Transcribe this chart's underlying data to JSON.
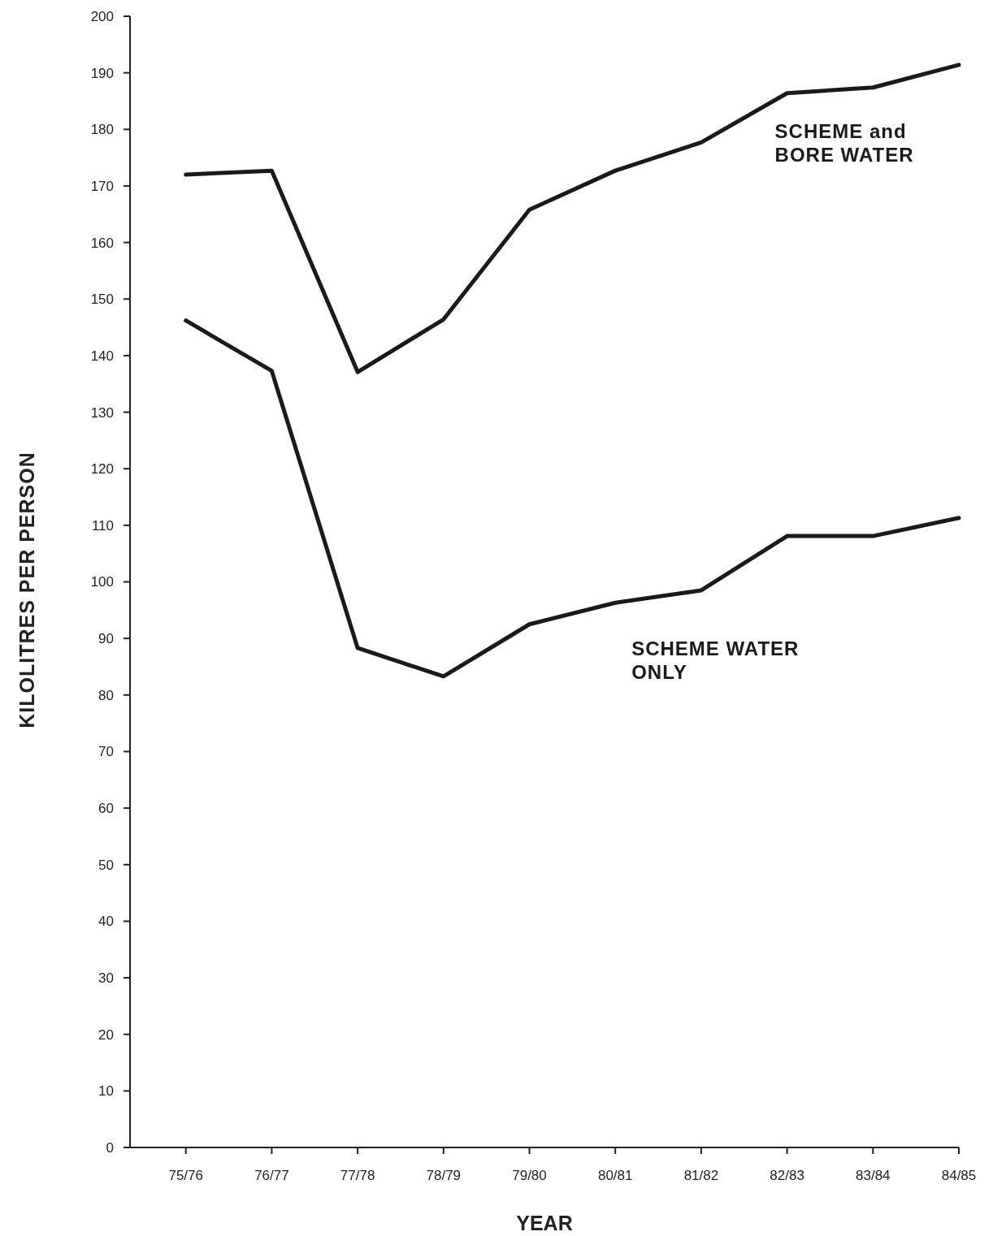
{
  "chart_data": {
    "type": "line",
    "xlabel": "YEAR",
    "ylabel": "KILOLITRES PER PERSON",
    "categories": [
      "75/76",
      "76/77",
      "77/78",
      "78/79",
      "79/80",
      "80/81",
      "81/82",
      "82/83",
      "83/84",
      "84/85"
    ],
    "ylim": [
      0,
      200
    ],
    "yticks": [
      0,
      10,
      20,
      30,
      40,
      50,
      60,
      70,
      80,
      90,
      100,
      110,
      120,
      130,
      140,
      150,
      160,
      170,
      180,
      190,
      200
    ],
    "grid": false,
    "marker": "none",
    "line_style": "solid",
    "series": [
      {
        "name": "SCHEME and BORE WATER",
        "color": "#1a1a1a",
        "values": [
          172,
          172.7,
          137.1,
          146.4,
          165.8,
          172.7,
          177.7,
          186.4,
          187.4,
          191.4
        ]
      },
      {
        "name": "SCHEME WATER ONLY",
        "color": "#1a1a1a",
        "values": [
          146.2,
          137.3,
          88.3,
          83.3,
          92.5,
          96.3,
          98.5,
          108.1,
          108.1,
          111.3
        ]
      }
    ]
  }
}
